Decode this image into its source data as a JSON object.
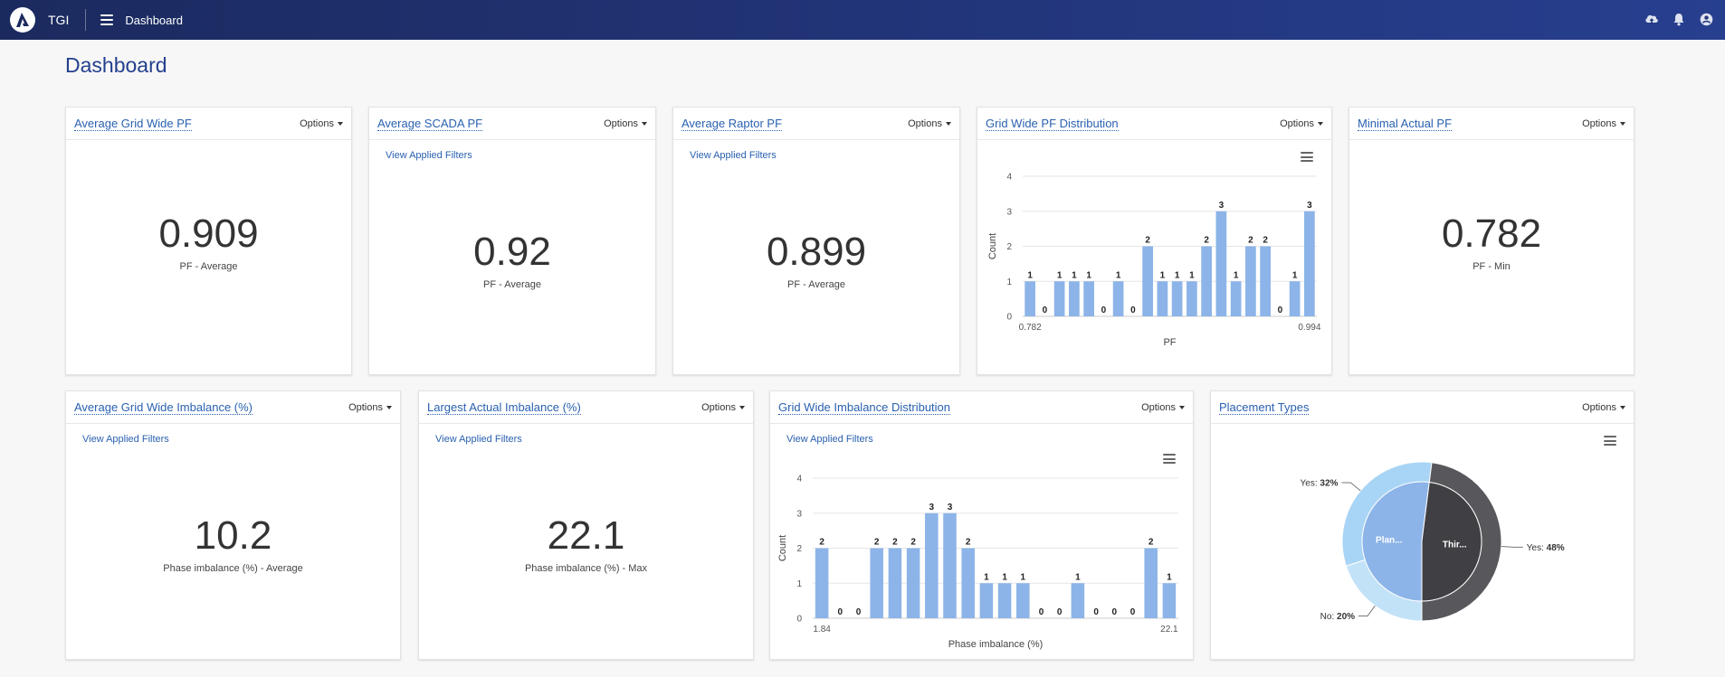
{
  "header": {
    "brand": "TGI",
    "breadcrumb": "Dashboard",
    "icons": [
      "logo-icon",
      "menu-icon",
      "upload-cloud-icon",
      "bell-icon",
      "user-icon"
    ]
  },
  "page": {
    "title": "Dashboard"
  },
  "common": {
    "options_label": "Options",
    "filters_label": "View Applied Filters"
  },
  "cards": {
    "avg_grid_pf": {
      "title": "Average Grid Wide PF",
      "value": "0.909",
      "label": "PF - Average"
    },
    "avg_scada_pf": {
      "title": "Average SCADA PF",
      "value": "0.92",
      "label": "PF - Average"
    },
    "avg_raptor_pf": {
      "title": "Average Raptor PF",
      "value": "0.899",
      "label": "PF - Average"
    },
    "pf_dist": {
      "title": "Grid Wide PF Distribution"
    },
    "min_pf": {
      "title": "Minimal Actual PF",
      "value": "0.782",
      "label": "PF - Min"
    },
    "avg_imb": {
      "title": "Average Grid Wide Imbalance (%)",
      "value": "10.2",
      "label": "Phase imbalance (%) - Average"
    },
    "max_imb": {
      "title": "Largest Actual Imbalance (%)",
      "value": "22.1",
      "label": "Phase imbalance (%) - Max"
    },
    "imb_dist": {
      "title": "Grid Wide Imbalance Distribution"
    },
    "placement": {
      "title": "Placement Types"
    }
  },
  "chart_data": [
    {
      "type": "bar",
      "xlabel": "PF",
      "ylabel": "Count",
      "x_tick_labels": [
        "0.782",
        "0.994"
      ],
      "y_ticks": [
        0,
        1,
        2,
        3,
        4
      ],
      "ylim": [
        0,
        4
      ],
      "values": [
        1,
        0,
        1,
        1,
        1,
        0,
        1,
        0,
        2,
        1,
        1,
        1,
        2,
        3,
        1,
        2,
        2,
        0,
        1,
        3
      ],
      "color": "#8cb4e8"
    },
    {
      "type": "bar",
      "xlabel": "Phase imbalance (%)",
      "ylabel": "Count",
      "x_tick_labels": [
        "1.84",
        "22.1"
      ],
      "y_ticks": [
        0,
        1,
        2,
        3,
        4
      ],
      "ylim": [
        0,
        4
      ],
      "values": [
        2,
        0,
        0,
        2,
        2,
        2,
        3,
        3,
        2,
        1,
        1,
        1,
        0,
        0,
        1,
        0,
        0,
        0,
        2,
        1
      ],
      "color": "#8cb4e8"
    },
    {
      "type": "pie",
      "inner": [
        {
          "name": "Thir...",
          "value": 48,
          "color": "#404044"
        },
        {
          "name": "Plan...",
          "value": 52,
          "color": "#8cb4e8"
        }
      ],
      "outer": [
        {
          "name": "Yes",
          "value": 48,
          "label": "48%",
          "color": "#58585c"
        },
        {
          "name": "No",
          "value": 20,
          "label": "20%",
          "color": "#c2e2f7"
        },
        {
          "name": "Yes",
          "value": 32,
          "label": "32%",
          "color": "#a8d4f5"
        }
      ]
    }
  ]
}
